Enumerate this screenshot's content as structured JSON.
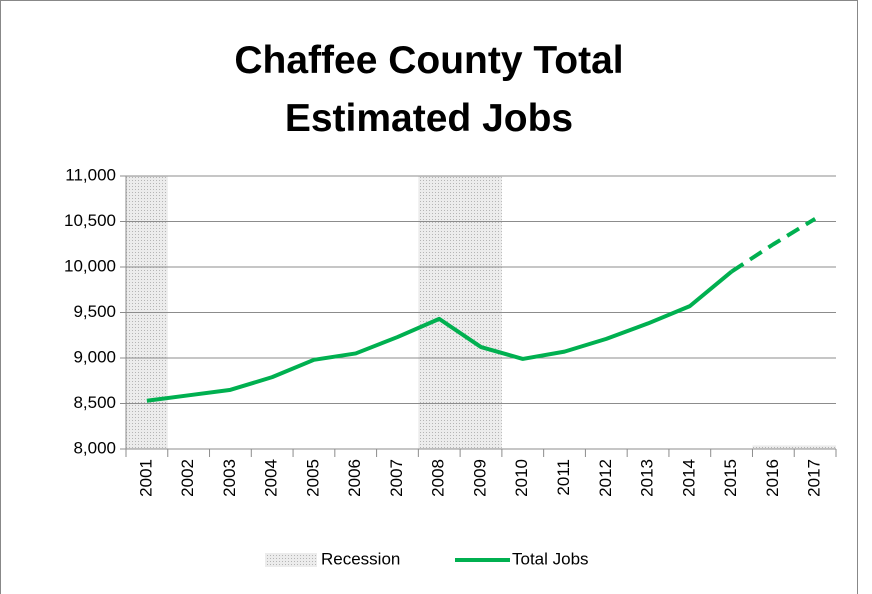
{
  "chart_data": {
    "type": "bar-line",
    "title": "Chaffee County Total Estimated Jobs",
    "categories": [
      "2001",
      "2002",
      "2003",
      "2004",
      "2005",
      "2006",
      "2007",
      "2008",
      "2009",
      "2010",
      "2011",
      "2012",
      "2013",
      "2014",
      "2015",
      "2016",
      "2017"
    ],
    "series": [
      {
        "name": "Recession",
        "type": "bar",
        "color": "#d9d9d9",
        "values": [
          11000,
          null,
          null,
          null,
          null,
          null,
          null,
          11000,
          11000,
          null,
          null,
          null,
          null,
          null,
          null,
          8040,
          8040
        ]
      },
      {
        "name": "Total Jobs",
        "type": "line",
        "color": "#00b050",
        "dashed_after": "2015",
        "values": [
          8530,
          8590,
          8650,
          8790,
          8980,
          9050,
          9230,
          9430,
          9120,
          8990,
          9070,
          9210,
          9380,
          9570,
          9950,
          10250,
          10530
        ]
      }
    ],
    "ylim": [
      8000,
      11000
    ],
    "yticks": [
      {
        "value": 8000,
        "label": "8,000"
      },
      {
        "value": 8500,
        "label": "8,500"
      },
      {
        "value": 9000,
        "label": "9,000"
      },
      {
        "value": 9500,
        "label": "9,500"
      },
      {
        "value": 10000,
        "label": "10,000"
      },
      {
        "value": 10500,
        "label": "10,500"
      },
      {
        "value": 11000,
        "label": "11,000"
      }
    ],
    "grid": true,
    "legend": "bottom"
  }
}
